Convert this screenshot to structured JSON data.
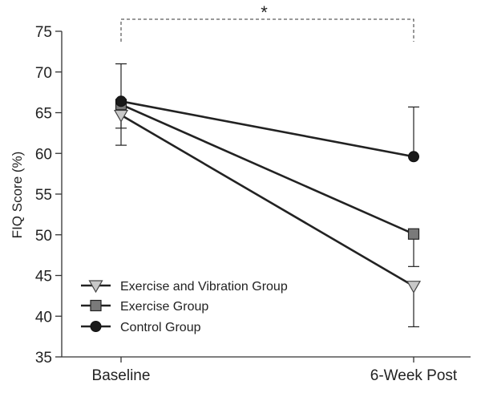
{
  "chart_data": {
    "type": "line",
    "title": "",
    "xlabel": "",
    "ylabel": "FIQ Score (%)",
    "categories": [
      "Baseline",
      "6-Week Post"
    ],
    "ylim": [
      35,
      75
    ],
    "yticks": [
      35,
      40,
      45,
      50,
      55,
      60,
      65,
      70,
      75
    ],
    "ytick_labels": [
      "35",
      "40",
      "45",
      "50",
      "55",
      "60",
      "65",
      "70",
      "75"
    ],
    "grid": false,
    "legend_position": "bottom-left",
    "series": [
      {
        "name": "Exercise and Vibration Group",
        "marker": "triangle-down",
        "marker_color": "#c8c8c8",
        "values": [
          64.7,
          43.7
        ],
        "error_low": [
          61.0,
          38.7
        ],
        "error_high": [
          null,
          null
        ]
      },
      {
        "name": "Exercise Group",
        "marker": "square",
        "marker_color": "#7a7a7a",
        "values": [
          66.0,
          50.1
        ],
        "error_low": [
          63.1,
          46.1
        ],
        "error_high": [
          null,
          null
        ]
      },
      {
        "name": "Control Group",
        "marker": "circle",
        "marker_color": "#1a1a1a",
        "values": [
          66.4,
          59.6
        ],
        "error_low": [
          null,
          null
        ],
        "error_high": [
          71.0,
          65.7
        ]
      }
    ],
    "annotations": [
      {
        "type": "significance-bracket",
        "from": "Baseline",
        "to": "6-Week Post",
        "label": "*"
      }
    ]
  }
}
